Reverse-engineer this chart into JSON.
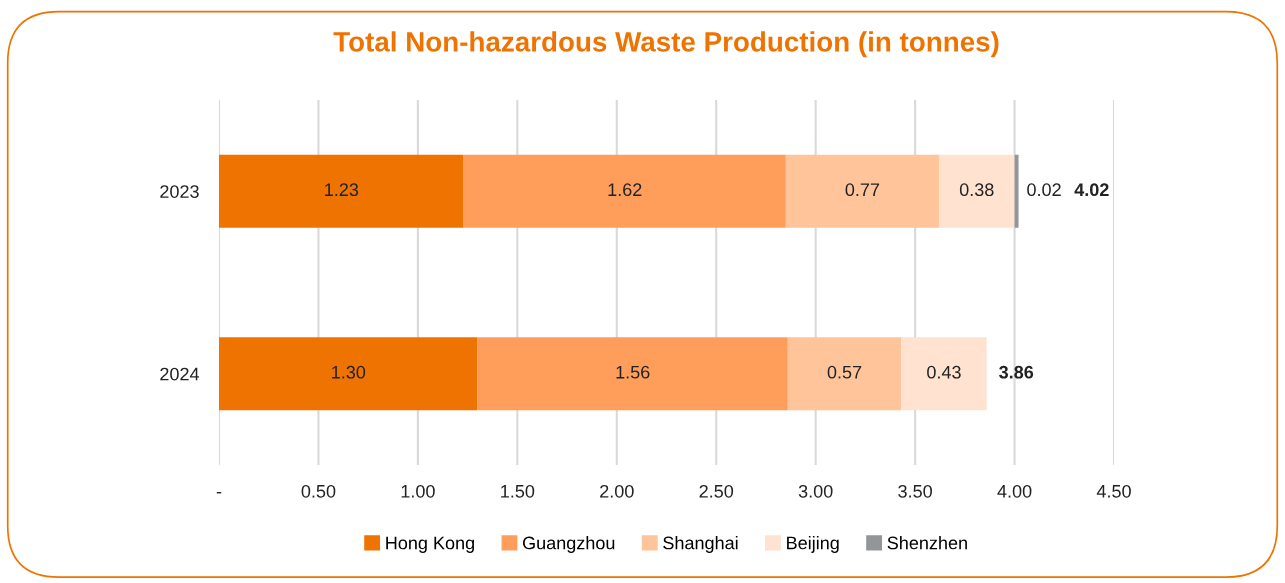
{
  "chart_data": {
    "type": "bar",
    "orientation": "horizontal",
    "stacked": true,
    "title": "Total Non-hazardous Waste Production (in tonnes)",
    "categories": [
      "2023",
      "2024"
    ],
    "series": [
      {
        "name": "Hong Kong",
        "color": "#ef7300",
        "values": [
          1.23,
          1.3
        ],
        "value_labels": [
          "1.23",
          "1.30"
        ]
      },
      {
        "name": "Guangzhou",
        "color": "#ff9e5a",
        "values": [
          1.62,
          1.56
        ],
        "value_labels": [
          "1.62",
          "1.56"
        ]
      },
      {
        "name": "Shanghai",
        "color": "#ffc499",
        "values": [
          0.77,
          0.57
        ],
        "value_labels": [
          "0.77",
          "0.57"
        ]
      },
      {
        "name": "Beijing",
        "color": "#ffe2cf",
        "values": [
          0.38,
          0.43
        ],
        "value_labels": [
          "0.38",
          "0.43"
        ]
      },
      {
        "name": "Shenzhen",
        "color": "#939598",
        "values": [
          0.02,
          null
        ],
        "value_labels": [
          "0.02",
          null
        ]
      }
    ],
    "totals": [
      "4.02",
      "3.86"
    ],
    "xlim": [
      0,
      4.5
    ],
    "xticks": [
      {
        "value": 0,
        "label": "-"
      },
      {
        "value": 0.5,
        "label": "0.50"
      },
      {
        "value": 1.0,
        "label": "1.00"
      },
      {
        "value": 1.5,
        "label": "1.50"
      },
      {
        "value": 2.0,
        "label": "2.00"
      },
      {
        "value": 2.5,
        "label": "2.50"
      },
      {
        "value": 3.0,
        "label": "3.00"
      },
      {
        "value": 3.5,
        "label": "3.50"
      },
      {
        "value": 4.0,
        "label": "4.00"
      },
      {
        "value": 4.5,
        "label": "4.50"
      }
    ],
    "grid": "x",
    "legend": "bottom"
  }
}
